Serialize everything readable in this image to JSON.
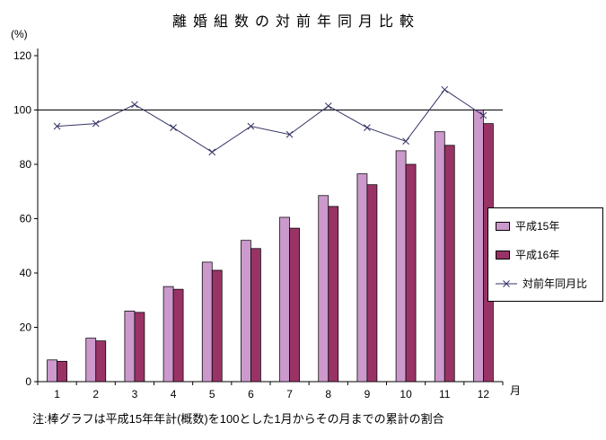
{
  "title": "離婚組数の対前年同月比較",
  "y_unit_label": "(%)",
  "x_axis_suffix": "月",
  "note": "注:棒グラフは平成15年年計(概数)を100とした1月からその月までの累計の割合",
  "chart_data": {
    "type": "bar+line",
    "categories": [
      "1",
      "2",
      "3",
      "4",
      "5",
      "6",
      "7",
      "8",
      "9",
      "10",
      "11",
      "12"
    ],
    "series": [
      {
        "name": "平成15年",
        "type": "bar",
        "color": "#cc99cc",
        "values": [
          8,
          16,
          26,
          35,
          44,
          52,
          60.5,
          68.5,
          76.5,
          85,
          92,
          100
        ]
      },
      {
        "name": "平成16年",
        "type": "bar",
        "color": "#993366",
        "values": [
          7.5,
          15,
          25.5,
          34,
          41,
          49,
          56.5,
          64.5,
          72.5,
          80,
          87,
          95
        ]
      },
      {
        "name": "対前年同月比",
        "type": "line",
        "color": "#333366",
        "marker": "x",
        "values": [
          94,
          95,
          102,
          93.5,
          84.5,
          94,
          91,
          101.5,
          93.5,
          88.5,
          107.5,
          98
        ]
      }
    ],
    "ylim": [
      0,
      120
    ],
    "yticks": [
      0,
      20,
      40,
      60,
      80,
      100,
      120
    ],
    "reference_line": 100,
    "legend_position": "right",
    "grid": "reference-line-only"
  }
}
